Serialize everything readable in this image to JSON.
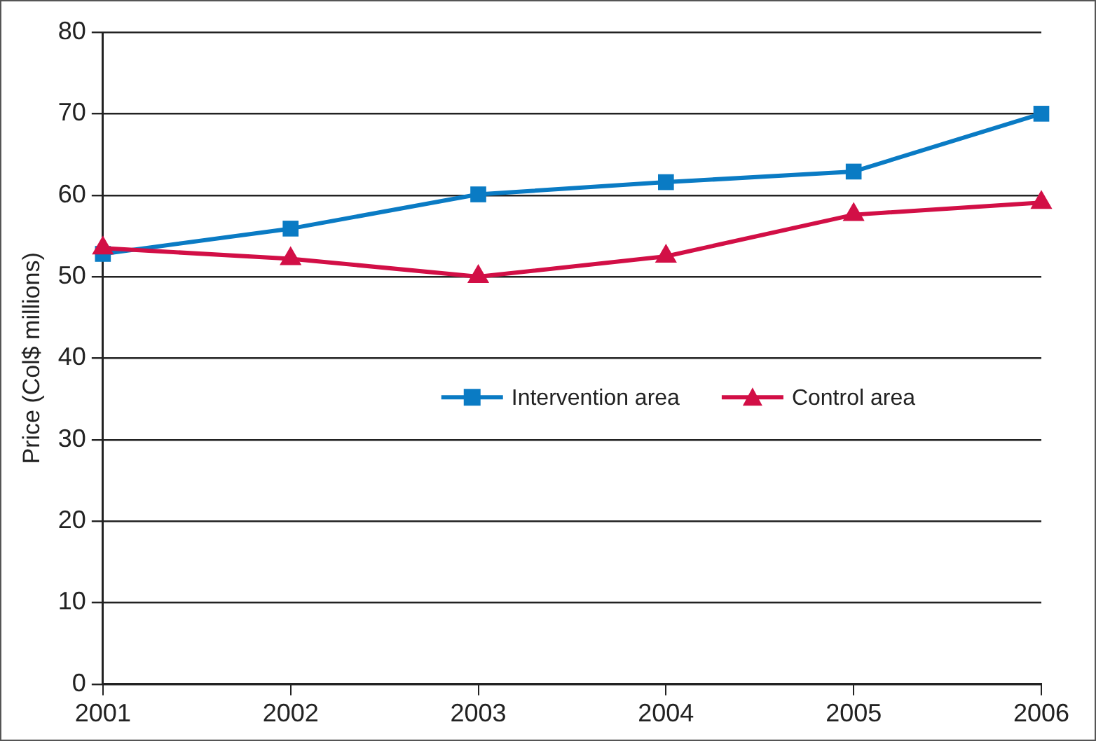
{
  "chart_data": {
    "type": "line",
    "ylabel": "Price (Col$ millions)",
    "x": [
      2001,
      2002,
      2003,
      2004,
      2005,
      2006
    ],
    "xlim": [
      2001,
      2006
    ],
    "xticks": [
      2001,
      2002,
      2003,
      2004,
      2005,
      2006
    ],
    "ylim": [
      0,
      80
    ],
    "yticks": [
      0,
      10,
      20,
      30,
      40,
      50,
      60,
      70,
      80
    ],
    "series": [
      {
        "name": "Intervention area",
        "color": "#0a7bc4",
        "marker": "square",
        "values": [
          52.8,
          55.9,
          60.1,
          61.6,
          62.9,
          70
        ]
      },
      {
        "name": "Control area",
        "color": "#d20f46",
        "marker": "triangle",
        "values": [
          53.5,
          52.2,
          50,
          52.5,
          57.6,
          59.1
        ]
      }
    ],
    "grid": "y",
    "legend": "right",
    "line_style": "solid"
  }
}
